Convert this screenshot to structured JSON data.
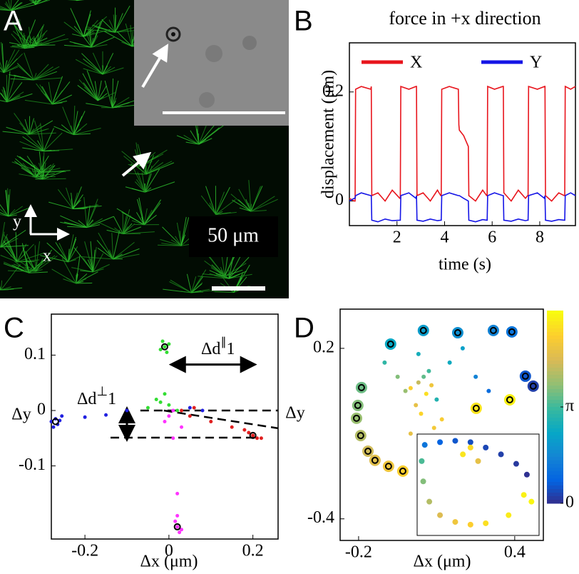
{
  "chart_data": [
    {
      "type": "image",
      "label": "A",
      "scale_bar_label": "50 μm",
      "x_axis_label": "x",
      "y_axis_label": "y"
    },
    {
      "type": "line",
      "label": "B",
      "title": "force in +x direction",
      "x_label": "time (s)",
      "y_label": "displacement (μm)",
      "xlim": [
        0,
        9.5
      ],
      "ylim": [
        -0.045,
        0.29
      ],
      "xticks": [
        2,
        4,
        6,
        8
      ],
      "yticks": [
        0,
        0.2
      ],
      "x": [
        0,
        0.2,
        0.24,
        0.26,
        0.5,
        0.9,
        0.92,
        0.94,
        1.2,
        1.5,
        1.8,
        2.12,
        2.14,
        2.16,
        2.5,
        2.8,
        2.82,
        2.84,
        3.1,
        3.4,
        3.7,
        3.84,
        3.86,
        3.88,
        4.2,
        4.58,
        4.6,
        4.62,
        4.8,
        5.0,
        5.02,
        5.3,
        5.6,
        5.77,
        5.79,
        5.81,
        6.1,
        6.45,
        6.47,
        6.49,
        6.8,
        7.1,
        7.4,
        7.49,
        7.51,
        7.53,
        7.9,
        8.2,
        8.22,
        8.24,
        8.5,
        8.8,
        9.03,
        9.05,
        9.07,
        9.3,
        9.5
      ],
      "series": [
        {
          "name": "X",
          "color": "#e8141c",
          "values": [
            0.005,
            0.0,
            0.0,
            0.205,
            0.21,
            0.205,
            0.21,
            0.01,
            0.015,
            0.0,
            0.02,
            0.005,
            0.005,
            0.21,
            0.205,
            0.21,
            0.21,
            0.01,
            0.015,
            0.0,
            0.02,
            0.01,
            0.01,
            0.205,
            0.21,
            0.205,
            0.14,
            0.13,
            0.12,
            0.1,
            0.01,
            0.0,
            0.02,
            0.01,
            0.01,
            0.21,
            0.205,
            0.21,
            0.21,
            0.015,
            0.0,
            0.02,
            0.005,
            0.01,
            0.01,
            0.21,
            0.205,
            0.21,
            0.21,
            0.01,
            0.0,
            0.015,
            0.01,
            0.01,
            0.21,
            0.205,
            0.21
          ]
        },
        {
          "name": "Y",
          "color": "#1414e6",
          "values": [
            0.0,
            0.005,
            0.005,
            0.01,
            0.015,
            0.01,
            0.01,
            -0.035,
            -0.038,
            -0.033,
            -0.036,
            -0.035,
            -0.035,
            0.01,
            0.015,
            0.005,
            0.01,
            -0.035,
            -0.037,
            -0.033,
            -0.036,
            -0.035,
            -0.035,
            0.01,
            0.015,
            0.01,
            0.01,
            0.01,
            0.005,
            0.0,
            -0.035,
            -0.038,
            -0.034,
            -0.035,
            -0.035,
            0.01,
            0.015,
            0.01,
            0.01,
            -0.035,
            -0.037,
            -0.033,
            -0.036,
            -0.035,
            -0.035,
            0.01,
            0.015,
            0.005,
            0.01,
            -0.035,
            -0.037,
            -0.034,
            -0.035,
            -0.035,
            0.01,
            0.015,
            0.01
          ]
        }
      ]
    },
    {
      "type": "scatter",
      "label": "C",
      "x_label": "Δx (μm)",
      "y_label": "Δy",
      "xlim": [
        -0.28,
        0.26
      ],
      "ylim": [
        -0.232,
        0.174
      ],
      "xticks": [
        -0.2,
        0,
        0.2
      ],
      "yticks": [
        0.1,
        0,
        -0.1
      ],
      "series": [
        {
          "color": "#2020e0",
          "x": [
            -0.28,
            -0.27,
            -0.265,
            -0.275,
            -0.26,
            -0.255,
            -0.2,
            -0.15,
            -0.1,
            0.05,
            0.08
          ],
          "y": [
            -0.02,
            -0.015,
            -0.025,
            -0.03,
            -0.018,
            -0.01,
            -0.012,
            -0.008,
            0.0,
            0.005,
            0.0
          ]
        },
        {
          "color": "#33dd33",
          "x": [
            -0.01,
            -0.015,
            -0.005,
            0.0,
            -0.02,
            -0.01,
            -0.03,
            0.0,
            -0.05,
            -0.02,
            0.02
          ],
          "y": [
            0.115,
            0.125,
            0.105,
            0.12,
            0.11,
            0.03,
            0.02,
            0.01,
            0.005,
            0.015,
            0.0
          ]
        },
        {
          "color": "#e02020",
          "x": [
            0.2,
            0.19,
            0.21,
            0.18,
            0.15,
            0.1,
            0.05,
            0.03,
            0.06,
            0.22
          ],
          "y": [
            -0.045,
            -0.04,
            -0.05,
            -0.035,
            -0.03,
            -0.02,
            -0.01,
            0.0,
            0.005,
            -0.05
          ]
        },
        {
          "color": "#ff33ff",
          "x": [
            0.02,
            0.015,
            0.025,
            0.02,
            0.03,
            0.0,
            0.01,
            -0.01,
            0.02,
            0.01,
            0.03
          ],
          "y": [
            -0.21,
            -0.2,
            -0.22,
            -0.19,
            -0.215,
            -0.01,
            0.0,
            -0.02,
            -0.15,
            -0.05,
            -0.03
          ]
        },
        {
          "color": "#000000",
          "marker": "ring",
          "x": [
            -0.27,
            -0.01,
            0.2,
            0.02
          ],
          "y": [
            -0.02,
            0.115,
            -0.045,
            -0.21
          ]
        }
      ],
      "guides": [
        {
          "x": [
            -0.068,
            0.26
          ],
          "y": [
            0,
            0
          ]
        },
        {
          "x": [
            -0.139,
            0.208
          ],
          "y": [
            -0.049,
            -0.049
          ]
        },
        {
          "x": [
            -0.012,
            0.26
          ],
          "y": [
            0,
            -0.032
          ]
        }
      ],
      "arrows": [
        {
          "x": [
            -0.1,
            -0.1
          ],
          "y": [
            0,
            -0.049
          ]
        },
        {
          "x": [
            0.01,
            0.2
          ],
          "y": [
            0.083,
            0.083
          ]
        }
      ],
      "annotations": [
        {
          "text": "Δd",
          "sup": "∥",
          "sub": "1"
        },
        {
          "text": "Δd",
          "sup": "⊥",
          "sub": "1"
        }
      ]
    },
    {
      "type": "scatter",
      "label": "D",
      "x_label": "Δx (μm)",
      "y_label": "Δy",
      "xlim": [
        -0.271,
        0.51
      ],
      "ylim": [
        -0.476,
        0.338
      ],
      "xticks": [
        -0.2,
        0.4
      ],
      "yticks": [
        0.2,
        -0.4
      ],
      "clim": [
        0,
        6.283
      ],
      "cticks": [
        0,
        {
          "value": 3.1416,
          "label": "π"
        }
      ],
      "series": [
        {
          "x": [
            0.0,
            0.03,
            0.06,
            0.05,
            0.02,
            -0.02,
            0.08,
            0.1,
            0.04,
            0.07,
            -0.05,
            0.12,
            0.15,
            0.2,
            0.25,
            0.3,
            0.0,
            -0.1,
            0.09,
            0.03
          ],
          "y": [
            0.06,
            0.08,
            0.04,
            0.1,
            0.0,
            0.05,
            0.07,
            0.02,
            -0.03,
            0.12,
            0.1,
            -0.05,
            0.15,
            0.2,
            0.1,
            0.05,
            -0.1,
            0.15,
            -0.08,
            0.18
          ],
          "c": [
            5.5,
            4.5,
            5.8,
            3.5,
            5.0,
            4.0,
            5.2,
            2.8,
            5.6,
            3.2,
            3.8,
            5.4,
            2.5,
            2.2,
            1.5,
            1.0,
            5.0,
            3.0,
            5.3,
            2.6
          ]
        },
        {
          "marker": "ring",
          "x": [
            -0.077,
            0.049,
            0.181,
            0.318,
            0.389,
            0.441,
            0.471,
            0.381,
            0.252,
            -0.189,
            -0.203,
            -0.208,
            -0.192,
            -0.164,
            -0.137,
            -0.085,
            -0.03
          ],
          "y": [
            0.215,
            0.263,
            0.255,
            0.263,
            0.258,
            0.102,
            0.067,
            0.019,
            -0.011,
            0.062,
            -0.001,
            -0.046,
            -0.107,
            -0.162,
            -0.194,
            -0.215,
            -0.232
          ],
          "c": [
            2.4,
            2.1,
            1.8,
            1.5,
            1.2,
            0.6,
            0.3,
            6.1,
            5.9,
            3.6,
            3.8,
            4.0,
            4.3,
            4.6,
            4.9,
            5.2,
            5.5
          ]
        }
      ],
      "inset": {
        "xlim": [
          -0.3,
          0.5
        ],
        "ylim": [
          -0.45,
          0.3
        ],
        "x": [
          -0.25,
          -0.15,
          -0.05,
          0.05,
          0.15,
          0.25,
          0.35,
          0.42,
          -0.27,
          -0.26,
          -0.22,
          -0.15,
          -0.05,
          0.05,
          0.15,
          0.3,
          0.4,
          0.0,
          0.05,
          0.1,
          0.45
        ],
        "y": [
          0.22,
          0.24,
          0.25,
          0.24,
          0.2,
          0.15,
          0.08,
          0.0,
          0.1,
          -0.05,
          -0.2,
          -0.3,
          -0.35,
          -0.37,
          -0.36,
          -0.3,
          -0.15,
          0.15,
          0.2,
          0.1,
          -0.2
        ],
        "c": [
          1.2,
          0.8,
          0.6,
          0.5,
          0.4,
          0.3,
          0.2,
          0.1,
          3.3,
          3.8,
          4.3,
          4.8,
          5.2,
          5.5,
          5.8,
          6.0,
          6.1,
          5.9,
          5.7,
          5.0,
          6.2
        ]
      }
    }
  ]
}
